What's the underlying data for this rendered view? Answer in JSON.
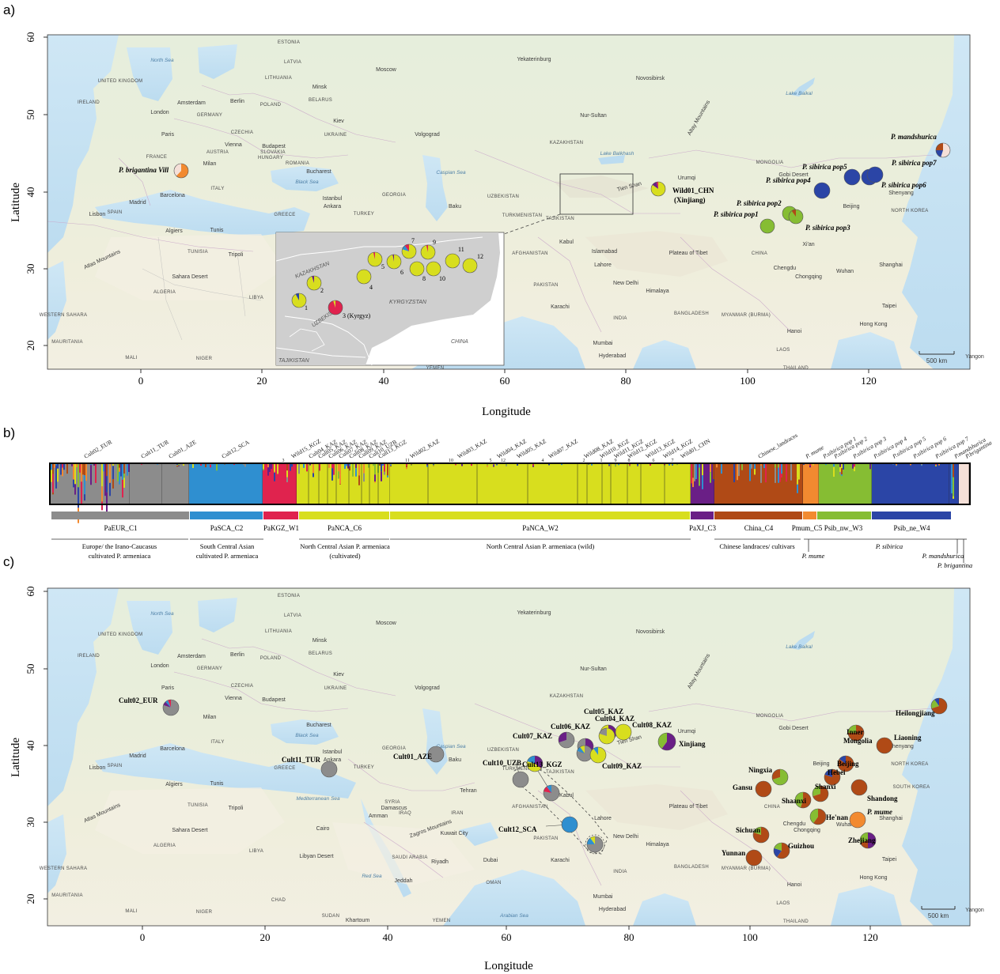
{
  "panels": {
    "a": "a)",
    "b": "b)",
    "c": "c)"
  },
  "axes": {
    "xlabel": "Longitude",
    "ylabel": "Latitude",
    "xticks": [
      "0",
      "20",
      "40",
      "60",
      "80",
      "100",
      "120"
    ],
    "yticks": [
      "60",
      "50",
      "40",
      "30",
      "20"
    ]
  },
  "scale_bar": "500 km",
  "colors": {
    "PaEUR_C1": "#8c8c8c",
    "PaSCA_C2": "#2f8fd0",
    "PaKGZ_W1": "#e0234e",
    "PaNCA": "#d8de1e",
    "PaXJ_C3": "#6a1f86",
    "China_C4": "#b04a16",
    "Pmum_C5": "#f28a30",
    "Psib_nw_W3": "#86bd33",
    "Psib_ne_W4": "#2b45a6",
    "pbrig": "#f5e0d8"
  },
  "map_a": {
    "places": [
      {
        "t": "ESTONIA"
      },
      {
        "t": "LATVIA"
      },
      {
        "t": "LITHUANIA"
      },
      {
        "t": "UNITED KINGDOM"
      },
      {
        "t": "IRELAND"
      },
      {
        "t": "London"
      },
      {
        "t": "Amsterdam"
      },
      {
        "t": "Berlin"
      },
      {
        "t": "POLAND"
      },
      {
        "t": "Minsk"
      },
      {
        "t": "BELARUS"
      },
      {
        "t": "GERMANY"
      },
      {
        "t": "Kiev"
      },
      {
        "t": "CZECHIA"
      },
      {
        "t": "UKRAINE"
      },
      {
        "t": "Paris"
      },
      {
        "t": "Vienna"
      },
      {
        "t": "Budapest"
      },
      {
        "t": "SLOVAKIA"
      },
      {
        "t": "FRANCE"
      },
      {
        "t": "AUSTRIA"
      },
      {
        "t": "HUNGARY"
      },
      {
        "t": "ROMANIA"
      },
      {
        "t": "Milan"
      },
      {
        "t": "Bucharest"
      },
      {
        "t": "ITALY"
      },
      {
        "t": "Barcelona"
      },
      {
        "t": "Madrid"
      },
      {
        "t": "SPAIN"
      },
      {
        "t": "Lisbon"
      },
      {
        "t": "Istanbul"
      },
      {
        "t": "Ankara"
      },
      {
        "t": "TURKEY"
      },
      {
        "t": "GREECE"
      },
      {
        "t": "Algiers"
      },
      {
        "t": "Tunis"
      },
      {
        "t": "TUNISIA"
      },
      {
        "t": "Tripoli"
      },
      {
        "t": "ALGERIA"
      },
      {
        "t": "LIBYA"
      },
      {
        "t": "WESTERN SAHARA"
      },
      {
        "t": "MAURITANIA"
      },
      {
        "t": "MALI"
      },
      {
        "t": "NIGER"
      },
      {
        "t": "Moscow"
      },
      {
        "t": "Yekaterinburg"
      },
      {
        "t": "Novosibirsk"
      },
      {
        "t": "Volgograd"
      },
      {
        "t": "KAZAKHSTAN"
      },
      {
        "t": "Nur-Sultan"
      },
      {
        "t": "GEORGIA"
      },
      {
        "t": "Baku"
      },
      {
        "t": "UZBEKISTAN"
      },
      {
        "t": "TURKMENISTAN"
      },
      {
        "t": "TAJIKISTAN"
      },
      {
        "t": "Urumqi"
      },
      {
        "t": "MONGOLIA"
      },
      {
        "t": "Kabul"
      },
      {
        "t": "AFGHANISTAN"
      },
      {
        "t": "Islamabad"
      },
      {
        "t": "Lahore"
      },
      {
        "t": "PAKISTAN"
      },
      {
        "t": "New Delhi"
      },
      {
        "t": "Karachi"
      },
      {
        "t": "INDIA"
      },
      {
        "t": "Mumbai"
      },
      {
        "t": "Hyderabad"
      },
      {
        "t": "Beijing"
      },
      {
        "t": "Shenyang"
      },
      {
        "t": "NORTH KOREA"
      },
      {
        "t": "CHINA"
      },
      {
        "t": "Xi'an"
      },
      {
        "t": "Chengdu"
      },
      {
        "t": "Chongqing"
      },
      {
        "t": "Wuhan"
      },
      {
        "t": "Shanghai"
      },
      {
        "t": "Taipei"
      },
      {
        "t": "Hong Kong"
      },
      {
        "t": "Hanoi"
      },
      {
        "t": "LAOS"
      },
      {
        "t": "Yangon"
      },
      {
        "t": "THAILAND"
      },
      {
        "t": "MYANMAR (BURMA)"
      },
      {
        "t": "BANGLADESH"
      },
      {
        "t": "Himalaya"
      },
      {
        "t": "Plateau of Tibet"
      },
      {
        "t": "YEMEN"
      },
      {
        "t": "Sahara Desert"
      },
      {
        "t": "Atlas Mountains"
      },
      {
        "t": "Altay Mountains"
      },
      {
        "t": "Gobi Desert"
      },
      {
        "t": "Tien Shan"
      }
    ],
    "seas": [
      {
        "t": "North Sea"
      },
      {
        "t": "Black Sea"
      },
      {
        "t": "Caspian Sea"
      },
      {
        "t": "Lake Balkhash"
      },
      {
        "t": "Lake Baikal"
      }
    ],
    "labels": [
      {
        "t": "P. brigantina Vill",
        "style": "bi"
      },
      {
        "t": "Wild01_CHN",
        "style": "b"
      },
      {
        "t": "(Xinjiang)",
        "style": "b"
      },
      {
        "t": "P. sibirica pop1",
        "style": "bi"
      },
      {
        "t": "P. sibirica pop2",
        "style": "bi"
      },
      {
        "t": "P. sibirica pop3",
        "style": "bi"
      },
      {
        "t": "P. sibirica pop4",
        "style": "bi"
      },
      {
        "t": "P. sibirica pop5",
        "style": "bi"
      },
      {
        "t": "P. sibirica pop6",
        "style": "bi"
      },
      {
        "t": "P. sibirica pop7",
        "style": "bi"
      },
      {
        "t": "P. mandshurica",
        "style": "bi"
      }
    ],
    "inset": {
      "countries": [
        "KAZAKHSTAN",
        "KYRGYZSTAN",
        "UZBEKISTAN",
        "TAJIKISTAN",
        "CHINA"
      ],
      "numbers": [
        "1",
        "2",
        "3 (Kyrgyz)",
        "4",
        "5",
        "6",
        "7",
        "8",
        "9",
        "10",
        "11",
        "12"
      ]
    }
  },
  "structure": {
    "top_labels": [
      "Cult02_EUR",
      "Cult11_TUR",
      "Cult01_AZE",
      "Cult12_SCA",
      "Wild15_KGZ",
      "Cult04_KAZ",
      "Cult05_KAZ",
      "Cult06_KAZ",
      "Cult07_KAZ",
      "Cult08_KAZ",
      "Cult09_KAZ",
      "Cult10_UZB",
      "Cult13_KGZ",
      "Wild02_KAZ",
      "Wild03_KAZ",
      "Wild04_KAZ",
      "Wild05_KAZ",
      "Wild07_KAZ",
      "Wild08_KAZ",
      "Wild10_KGZ",
      "Wild11_KGZ",
      "Wild12_KGZ",
      "Wild13_KGZ",
      "Wild14_KGZ",
      "Wild01_CHN",
      "Chinese_landraces",
      "P. mume",
      "P.sibirica pop 1",
      "P.sibirica pop 2",
      "P.sibirica pop 3",
      "P.sibirica pop 4",
      "P.sibirica pop 5",
      "P.sibirica pop 6",
      "P.sibirica pop 7",
      "P.mandshurica",
      "P.brigantina"
    ],
    "sub_numbers": [
      "3",
      "11",
      "10",
      "5",
      "12",
      "4",
      "2",
      "1",
      "9",
      "8",
      "6",
      "7"
    ],
    "clusters": [
      {
        "label": "PaEUR_C1"
      },
      {
        "label": "PaSCA_C2"
      },
      {
        "label": "PaKGZ_W1"
      },
      {
        "label": "PaNCA_C6"
      },
      {
        "label": "PaNCA_W2"
      },
      {
        "label": "PaXJ_C3"
      },
      {
        "label": "China_C4"
      },
      {
        "label": "Pmum_C5"
      },
      {
        "label": "Psib_nw_W3"
      },
      {
        "label": "Psib_ne_W4"
      }
    ],
    "groups": [
      {
        "l1": "Europe/ the Irano-Caucasus",
        "l2": "cultivated P. armeniaca"
      },
      {
        "l1": "South Central Asian",
        "l2": "cultivated P. armeniaca"
      },
      {
        "l1": "North Central Asian P. armeniaca",
        "l2": "(cultivated)"
      },
      {
        "l1": "North Central Asian P. armeniaca (wild)",
        "l2": ""
      },
      {
        "l1": "Chinese landraces/ cultivars",
        "l2": ""
      },
      {
        "l1": "P. mume",
        "l2": ""
      },
      {
        "l1": "P. sibirica",
        "l2": ""
      },
      {
        "l1": "P. mandshurica",
        "l2": ""
      },
      {
        "l1": "P. brigantina",
        "l2": ""
      }
    ]
  },
  "map_c": {
    "places": [
      {
        "t": "ESTONIA"
      },
      {
        "t": "LATVIA"
      },
      {
        "t": "LITHUANIA"
      },
      {
        "t": "UNITED KINGDOM"
      },
      {
        "t": "IRELAND"
      },
      {
        "t": "London"
      },
      {
        "t": "Amsterdam"
      },
      {
        "t": "Berlin"
      },
      {
        "t": "POLAND"
      },
      {
        "t": "Minsk"
      },
      {
        "t": "BELARUS"
      },
      {
        "t": "GERMANY"
      },
      {
        "t": "Kiev"
      },
      {
        "t": "CZECHIA"
      },
      {
        "t": "UKRAINE"
      },
      {
        "t": "Paris"
      },
      {
        "t": "Vienna"
      },
      {
        "t": "Budapest"
      },
      {
        "t": "Milan"
      },
      {
        "t": "Bucharest"
      },
      {
        "t": "ITALY"
      },
      {
        "t": "Barcelona"
      },
      {
        "t": "Madrid"
      },
      {
        "t": "SPAIN"
      },
      {
        "t": "Lisbon"
      },
      {
        "t": "Istanbul"
      },
      {
        "t": "Ankara"
      },
      {
        "t": "TURKEY"
      },
      {
        "t": "GREECE"
      },
      {
        "t": "Algiers"
      },
      {
        "t": "Tunis"
      },
      {
        "t": "TUNISIA"
      },
      {
        "t": "Tripoli"
      },
      {
        "t": "ALGERIA"
      },
      {
        "t": "LIBYA"
      },
      {
        "t": "WESTERN SAHARA"
      },
      {
        "t": "MAURITANIA"
      },
      {
        "t": "MALI"
      },
      {
        "t": "NIGER"
      },
      {
        "t": "CHAD"
      },
      {
        "t": "SUDAN"
      },
      {
        "t": "Khartoum"
      },
      {
        "t": "Cairo"
      },
      {
        "t": "Libyan Desert"
      },
      {
        "t": "Sahara Desert"
      },
      {
        "t": "Moscow"
      },
      {
        "t": "Yekaterinburg"
      },
      {
        "t": "Novosibirsk"
      },
      {
        "t": "Volgograd"
      },
      {
        "t": "KAZAKHSTAN"
      },
      {
        "t": "Nur-Sultan"
      },
      {
        "t": "GEORGIA"
      },
      {
        "t": "Baku"
      },
      {
        "t": "UZBEKISTAN"
      },
      {
        "t": "TURKMENISTAN"
      },
      {
        "t": "TAJIKISTAN"
      },
      {
        "t": "Tehran"
      },
      {
        "t": "IRAN"
      },
      {
        "t": "IRAQ"
      },
      {
        "t": "SYRIA"
      },
      {
        "t": "Damascus"
      },
      {
        "t": "Amman"
      },
      {
        "t": "Kuwait City"
      },
      {
        "t": "Riyadh"
      },
      {
        "t": "Jeddah"
      },
      {
        "t": "SAUDI ARABIA"
      },
      {
        "t": "Dubai"
      },
      {
        "t": "OMAN"
      },
      {
        "t": "YEMEN"
      },
      {
        "t": "Zagros Mountains"
      },
      {
        "t": "Urumqi"
      },
      {
        "t": "MONGOLIA"
      },
      {
        "t": "Kabul"
      },
      {
        "t": "AFGHANISTAN"
      },
      {
        "t": "Lahore"
      },
      {
        "t": "PAKISTAN"
      },
      {
        "t": "New Delhi"
      },
      {
        "t": "Karachi"
      },
      {
        "t": "INDIA"
      },
      {
        "t": "Mumbai"
      },
      {
        "t": "Hyderabad"
      },
      {
        "t": "Shanghai"
      },
      {
        "t": "Taipei"
      },
      {
        "t": "Hong Kong"
      },
      {
        "t": "Hanoi"
      },
      {
        "t": "LAOS"
      },
      {
        "t": "Yangon"
      },
      {
        "t": "THAILAND"
      },
      {
        "t": "MYANMAR (BURMA)"
      },
      {
        "t": "BANGLADESH"
      },
      {
        "t": "Himalaya"
      },
      {
        "t": "Plateau of Tibet"
      },
      {
        "t": "Chengdu"
      },
      {
        "t": "Chongqing"
      },
      {
        "t": "Wuhan"
      },
      {
        "t": "Shenyang"
      },
      {
        "t": "NORTH KOREA"
      },
      {
        "t": "SOUTH KOREA"
      },
      {
        "t": "CHINA"
      },
      {
        "t": "Beijing"
      },
      {
        "t": "Atlas Mountains"
      },
      {
        "t": "Altay Mountains"
      },
      {
        "t": "Gobi Desert"
      },
      {
        "t": "Tien Shan"
      }
    ],
    "seas": [
      {
        "t": "North Sea"
      },
      {
        "t": "Black Sea"
      },
      {
        "t": "Caspian Sea"
      },
      {
        "t": "Lake Baikal"
      },
      {
        "t": "Mediterranean Sea"
      },
      {
        "t": "Arabian Sea"
      },
      {
        "t": "Red Sea"
      }
    ],
    "labels": [
      {
        "t": "Cult02_EUR"
      },
      {
        "t": "Cult11_TUR"
      },
      {
        "t": "Cult01_AZE"
      },
      {
        "t": "Cult07_KAZ"
      },
      {
        "t": "Cult06_KAZ"
      },
      {
        "t": "Cult05_KAZ"
      },
      {
        "t": "Cult04_KAZ"
      },
      {
        "t": "Cult08_KAZ"
      },
      {
        "t": "Cult10_UZB"
      },
      {
        "t": "Cult13_KGZ"
      },
      {
        "t": "Cult09_KAZ"
      },
      {
        "t": "Cult12_SCA"
      },
      {
        "t": "Xinjiang"
      },
      {
        "t": "Heilongjiang"
      },
      {
        "t": "Inner"
      },
      {
        "t": "Mongolia"
      },
      {
        "t": "Liaoning"
      },
      {
        "t": "Ningxia"
      },
      {
        "t": "Beijing"
      },
      {
        "t": "Hebei"
      },
      {
        "t": "Gansu"
      },
      {
        "t": "Shanxi"
      },
      {
        "t": "Shaanxi"
      },
      {
        "t": "Shandong"
      },
      {
        "t": "He'nan"
      },
      {
        "t": "P. mume"
      },
      {
        "t": "Sichuan"
      },
      {
        "t": "Zhejiang"
      },
      {
        "t": "Guizhou"
      },
      {
        "t": "Yunnan"
      }
    ]
  }
}
